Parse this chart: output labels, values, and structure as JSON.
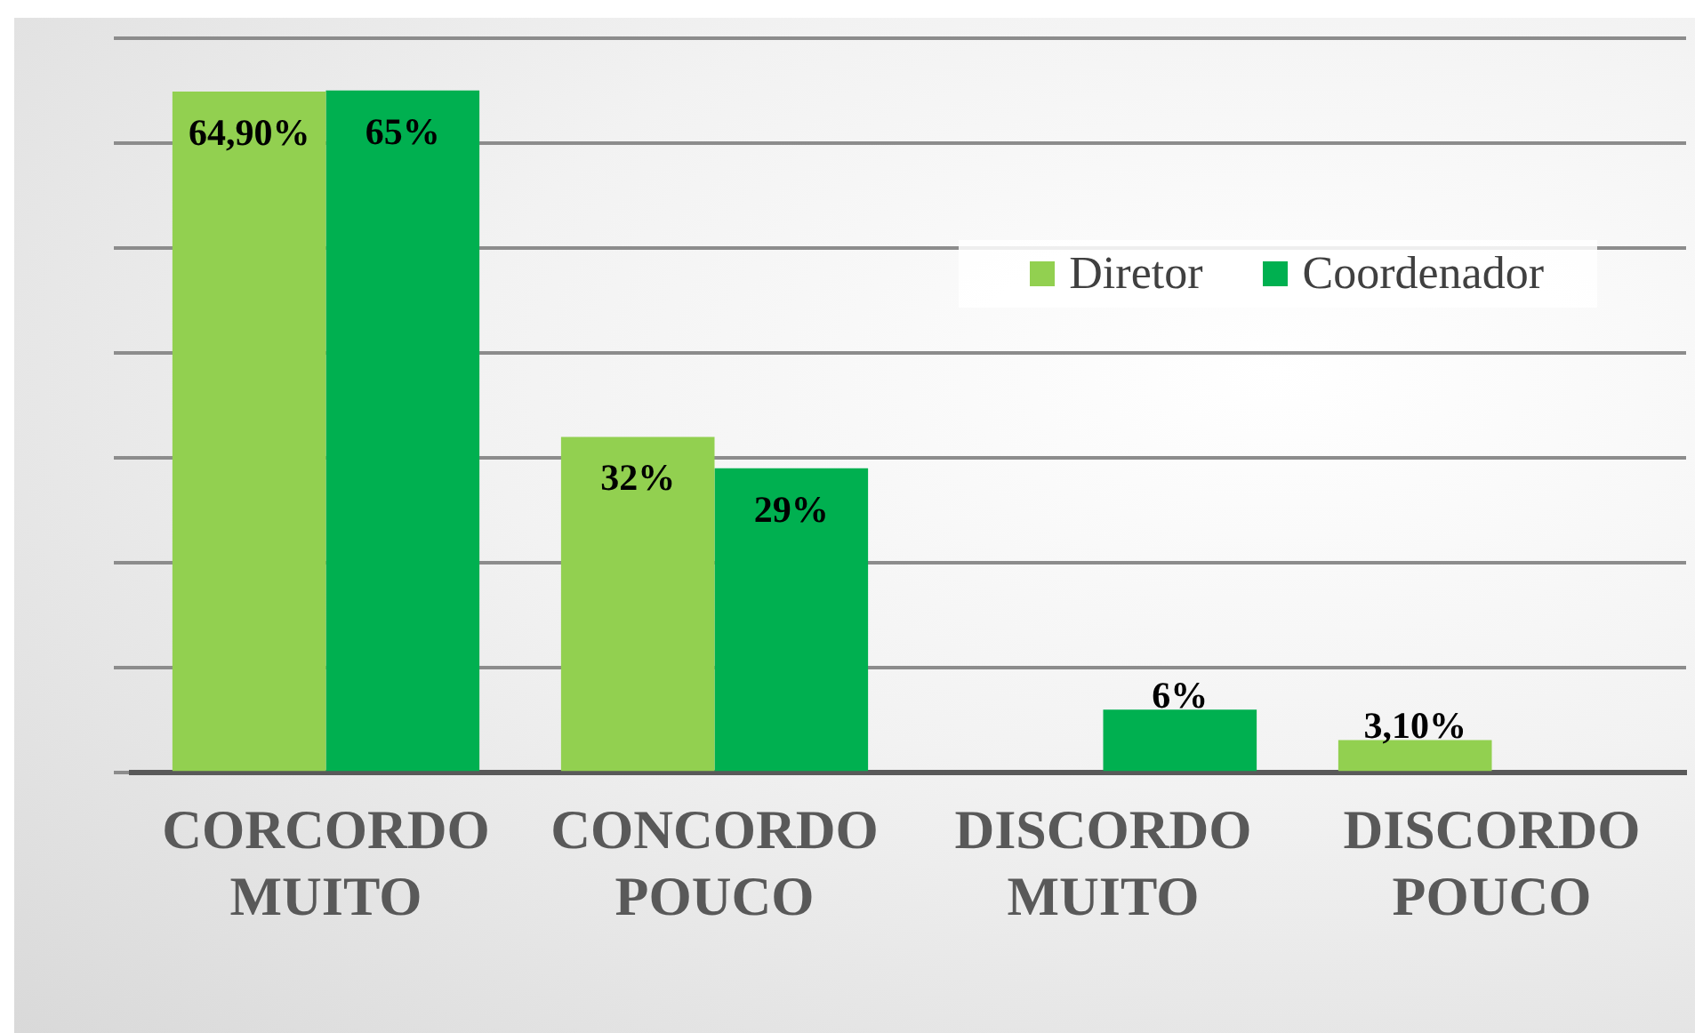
{
  "chart_data": {
    "type": "bar",
    "categories": [
      "CORCORDO MUITO",
      "CONCORDO POUCO",
      "DISCORDO MUITO",
      "DISCORDO POUCO"
    ],
    "series": [
      {
        "name": "Diretor",
        "color": "#92d050",
        "values": [
          64.9,
          32,
          null,
          3.1
        ],
        "value_labels": [
          "64,90%",
          "32%",
          null,
          "3,10%"
        ]
      },
      {
        "name": "Coordenador",
        "color": "#00b050",
        "values": [
          65,
          29,
          6,
          null
        ],
        "value_labels": [
          "65%",
          "29%",
          "6%",
          null
        ]
      }
    ],
    "ylim": [
      0,
      70
    ],
    "yticks": [
      {
        "value": 0,
        "label": null
      },
      {
        "value": 10,
        "label": null
      },
      {
        "value": 20,
        "label": null
      },
      {
        "value": 30,
        "label": null
      },
      {
        "value": 40,
        "label": null
      },
      {
        "value": 50,
        "label": null
      },
      {
        "value": 60,
        "label": null
      },
      {
        "value": 70,
        "label": null
      }
    ],
    "tick_labels": "x",
    "grid": "y",
    "legend": "top right"
  }
}
